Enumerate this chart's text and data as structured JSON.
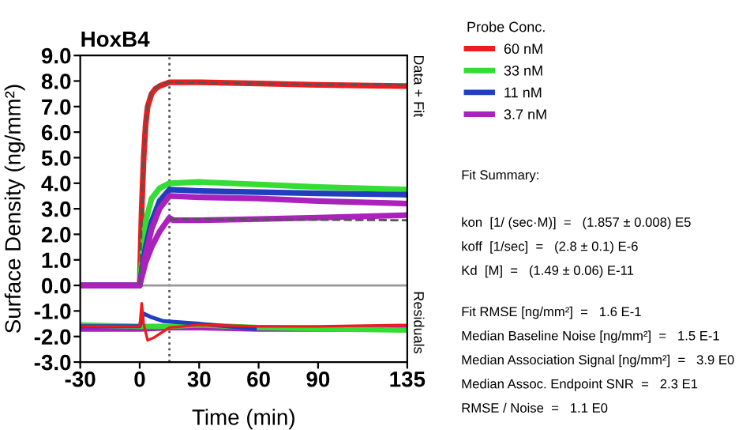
{
  "chart_data": {
    "type": "line",
    "title": "HoxB4",
    "xlabel": "Time (min)",
    "ylabel": "Surface Density (ng/mm²)",
    "legend_title": "Probe Conc.",
    "legend": "right",
    "grid": false,
    "marker": "none",
    "xlim": [
      -30,
      135
    ],
    "xticks": [
      -30,
      0,
      30,
      60,
      90,
      135
    ],
    "ylim": [
      -3,
      9
    ],
    "yticks": [
      {
        "value": -3,
        "label": "-3.0"
      },
      {
        "value": -2,
        "label": "-2.0"
      },
      {
        "value": -1,
        "label": "-1.0"
      },
      {
        "value": 0,
        "label": "0.0"
      },
      {
        "value": 1,
        "label": "1.0"
      },
      {
        "value": 2,
        "label": "2.0"
      },
      {
        "value": 3,
        "label": "3.0"
      },
      {
        "value": 4,
        "label": "4.0"
      },
      {
        "value": 5,
        "label": "5.0"
      },
      {
        "value": 6,
        "label": "6.0"
      },
      {
        "value": 7,
        "label": "7.0"
      },
      {
        "value": 8,
        "label": "8.0"
      },
      {
        "value": 9,
        "label": "9.0"
      }
    ],
    "ref_lines": [
      {
        "axis": "x",
        "value": 15,
        "color": "#555555",
        "line_style": "dotted"
      },
      {
        "axis": "y",
        "value": 0,
        "color": "#999999",
        "line_style": "solid"
      }
    ],
    "series": [
      {
        "name": "60 nM",
        "color": "#ee1c1c",
        "x": [
          -30,
          -15,
          0,
          1,
          2,
          3,
          4,
          6,
          8,
          10,
          15,
          30,
          60,
          90,
          135
        ],
        "values": [
          0,
          0,
          0,
          3,
          5,
          6.3,
          7,
          7.5,
          7.7,
          7.8,
          7.95,
          7.95,
          7.9,
          7.85,
          7.8
        ]
      },
      {
        "name": "33 nM",
        "color": "#33dd33",
        "x": [
          -30,
          -15,
          0,
          1.5,
          3,
          6,
          10,
          15,
          30,
          60,
          90,
          135
        ],
        "values": [
          0,
          0,
          0,
          1.4,
          2.5,
          3.4,
          3.8,
          4.0,
          4.05,
          3.95,
          3.85,
          3.75
        ]
      },
      {
        "name": "11 nM",
        "color": "#1f3fbf",
        "x": [
          -30,
          -15,
          0,
          1.5,
          3,
          6,
          10,
          15,
          30,
          60,
          90,
          135
        ],
        "values": [
          0,
          0,
          0,
          0.8,
          1.5,
          2.5,
          3.3,
          3.75,
          3.7,
          3.65,
          3.6,
          3.55
        ]
      },
      {
        "name": "3.7 nM",
        "color": "#aa22bb",
        "x": [
          -30,
          -15,
          0,
          3,
          6,
          10,
          15,
          30,
          60,
          90,
          135
        ],
        "values": [
          0,
          0,
          0,
          1.2,
          2.2,
          3.0,
          3.5,
          3.45,
          3.4,
          3.3,
          3.2
        ]
      },
      {
        "color": "#aa22bb",
        "x": [
          -30,
          -15,
          0,
          3,
          6,
          10,
          15,
          17,
          30,
          60,
          90,
          135
        ],
        "values": [
          0,
          0,
          0,
          0.9,
          1.5,
          2.1,
          2.65,
          2.55,
          2.55,
          2.6,
          2.65,
          2.75
        ]
      },
      {
        "color": "#555555",
        "line_style": "dashed",
        "x": [
          0,
          2,
          4,
          6,
          10,
          15,
          30,
          60,
          90,
          135
        ],
        "values": [
          0,
          5.3,
          7.1,
          7.6,
          7.85,
          7.95,
          7.93,
          7.9,
          7.87,
          7.85
        ]
      },
      {
        "color": "#555555",
        "line_style": "dashed",
        "x": [
          15,
          30,
          60,
          90,
          135
        ],
        "values": [
          2.6,
          2.6,
          2.58,
          2.57,
          2.55
        ]
      },
      {
        "color": "#aa22bb",
        "x": [
          -30,
          0,
          15,
          30,
          60,
          90,
          135
        ],
        "values": [
          -1.7,
          -1.7,
          -1.65,
          -1.65,
          -1.7,
          -1.7,
          -1.7
        ]
      },
      {
        "color": "#33dd33",
        "x": [
          -30,
          0,
          15,
          30,
          60,
          90,
          135
        ],
        "values": [
          -1.55,
          -1.6,
          -1.6,
          -1.55,
          -1.65,
          -1.7,
          -1.75
        ]
      },
      {
        "color": "#1f3fbf",
        "x": [
          -30,
          0,
          2,
          6,
          12,
          30,
          58
        ],
        "values": [
          -1.6,
          -1.6,
          -1.1,
          -1.25,
          -1.4,
          -1.5,
          -1.7
        ]
      },
      {
        "color": "#ee1c1c",
        "x": [
          -30,
          -15,
          0,
          1,
          2,
          4,
          7,
          12,
          15,
          30,
          60,
          90,
          135
        ],
        "values": [
          -1.6,
          -1.6,
          -1.6,
          -0.7,
          -1.5,
          -2.15,
          -2.05,
          -1.8,
          -1.65,
          -1.55,
          -1.6,
          -1.6,
          -1.55
        ]
      }
    ],
    "annotations": [
      "Data + Fit",
      "Residuals",
      "Fit Summary:",
      "kon  [1/ (sec·M)]  =   (1.857 ± 0.008) E5",
      "koff  [1/sec]  =   (2.8 ± 0.1) E-6",
      "Kd  [M]  =   (1.49 ± 0.06) E-11",
      "Fit RMSE [ng/mm²]  =   1.6 E-1",
      "Median Baseline Noise [ng/mm²]  =   1.5 E-1",
      "Median Association Signal [ng/mm²]  =   3.9 E0",
      "Median Assoc. Endpoint SNR  =   2.3 E1",
      "RMSE / Noise  =   1.1 E0"
    ]
  }
}
